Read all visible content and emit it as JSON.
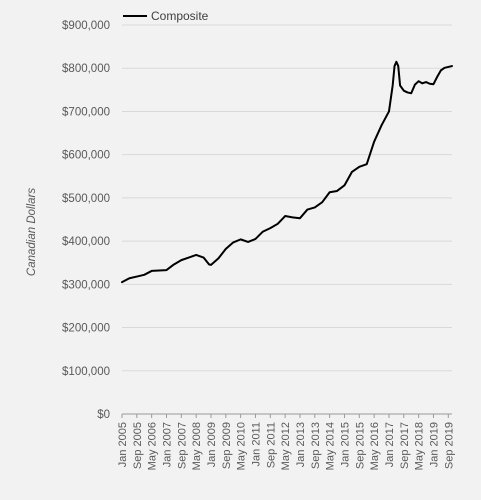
{
  "chart_data": {
    "type": "line",
    "title": "",
    "xlabel": "",
    "ylabel": "Canadian Dollars",
    "ylim": [
      0,
      900000
    ],
    "y_ticks": [
      0,
      100000,
      200000,
      300000,
      400000,
      500000,
      600000,
      700000,
      800000,
      900000
    ],
    "y_tick_labels": [
      "$0",
      "$100,000",
      "$200,000",
      "$300,000",
      "$400,000",
      "$500,000",
      "$600,000",
      "$700,000",
      "$800,000",
      "$900,000"
    ],
    "x_tick_labels": [
      "Jan 2005",
      "Sep 2005",
      "May 2006",
      "Jan 2007",
      "Sep 2007",
      "May 2008",
      "Jan 2009",
      "Sep 2009",
      "May 2010",
      "Jan 2011",
      "Sep 2011",
      "May 2012",
      "Jan 2013",
      "Sep 2013",
      "May 2014",
      "Jan 2015",
      "Sep 2015",
      "May 2016",
      "Jan 2017",
      "Sep 2017",
      "May 2018",
      "Jan 2019",
      "Sep 2019"
    ],
    "x_range": [
      "2005-01",
      "2019-11"
    ],
    "grid": true,
    "legend_position": "top-left",
    "series": [
      {
        "name": "Composite",
        "color": "#000000",
        "points": [
          [
            "2005-01",
            305000
          ],
          [
            "2005-05",
            314000
          ],
          [
            "2005-09",
            318000
          ],
          [
            "2006-01",
            322000
          ],
          [
            "2006-05",
            331000
          ],
          [
            "2006-09",
            332000
          ],
          [
            "2007-01",
            333000
          ],
          [
            "2007-05",
            346000
          ],
          [
            "2007-09",
            356000
          ],
          [
            "2008-01",
            362000
          ],
          [
            "2008-05",
            368000
          ],
          [
            "2008-09",
            362000
          ],
          [
            "2008-12",
            346000
          ],
          [
            "2009-01",
            345000
          ],
          [
            "2009-05",
            360000
          ],
          [
            "2009-09",
            382000
          ],
          [
            "2010-01",
            397000
          ],
          [
            "2010-05",
            404000
          ],
          [
            "2010-09",
            398000
          ],
          [
            "2011-01",
            405000
          ],
          [
            "2011-05",
            422000
          ],
          [
            "2011-09",
            430000
          ],
          [
            "2012-01",
            440000
          ],
          [
            "2012-05",
            458000
          ],
          [
            "2012-09",
            455000
          ],
          [
            "2013-01",
            453000
          ],
          [
            "2013-05",
            473000
          ],
          [
            "2013-09",
            478000
          ],
          [
            "2014-01",
            490000
          ],
          [
            "2014-05",
            513000
          ],
          [
            "2014-09",
            516000
          ],
          [
            "2015-01",
            529000
          ],
          [
            "2015-05",
            560000
          ],
          [
            "2015-09",
            572000
          ],
          [
            "2016-01",
            578000
          ],
          [
            "2016-05",
            630000
          ],
          [
            "2016-09",
            668000
          ],
          [
            "2017-01",
            700000
          ],
          [
            "2017-03",
            760000
          ],
          [
            "2017-04",
            805000
          ],
          [
            "2017-05",
            815000
          ],
          [
            "2017-06",
            805000
          ],
          [
            "2017-07",
            760000
          ],
          [
            "2017-09",
            748000
          ],
          [
            "2017-11",
            744000
          ],
          [
            "2018-01",
            742000
          ],
          [
            "2018-03",
            762000
          ],
          [
            "2018-05",
            770000
          ],
          [
            "2018-07",
            765000
          ],
          [
            "2018-09",
            768000
          ],
          [
            "2018-11",
            764000
          ],
          [
            "2019-01",
            763000
          ],
          [
            "2019-03",
            780000
          ],
          [
            "2019-05",
            795000
          ],
          [
            "2019-07",
            801000
          ],
          [
            "2019-09",
            803000
          ],
          [
            "2019-11",
            805000
          ]
        ]
      }
    ]
  }
}
